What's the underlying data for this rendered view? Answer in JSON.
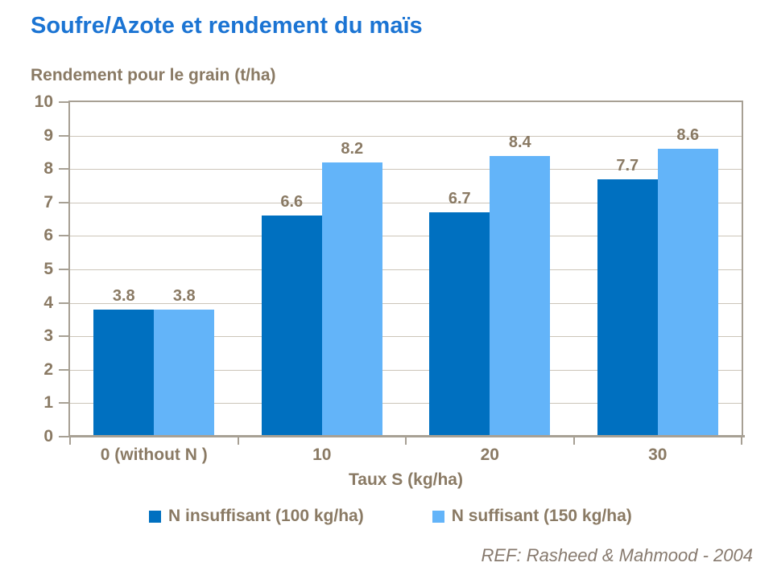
{
  "page": {
    "footer_ref": "REF: Rasheed & Mahmood - 2004"
  },
  "chart_data": {
    "type": "bar",
    "title": "Soufre/Azote et rendement du maïs",
    "ylabel": "Rendement pour le grain (t/ha)",
    "xlabel": "Taux S (kg/ha)",
    "categories": [
      "0 (without N )",
      "10",
      "20",
      "30"
    ],
    "series": [
      {
        "name": "N insuffisant (100 kg/ha)",
        "color": "#0070C0",
        "values": [
          3.8,
          6.6,
          6.7,
          7.7
        ]
      },
      {
        "name": "N suffisant (150 kg/ha)",
        "color": "#63B4F9",
        "values": [
          3.8,
          8.2,
          8.4,
          8.6
        ]
      }
    ],
    "ylim": [
      0,
      10
    ],
    "ytick_step": 1,
    "grid": true,
    "value_labels": true,
    "legend_position": "bottom"
  },
  "colors": {
    "title": "#1B74D3",
    "text": "#8A7A64",
    "axis": "#A7A094",
    "gridline": "#CCC5B9",
    "series1": "#0070C0",
    "series2": "#63B4F9",
    "footer": "#877A6E",
    "background": "#FFFFFF"
  }
}
